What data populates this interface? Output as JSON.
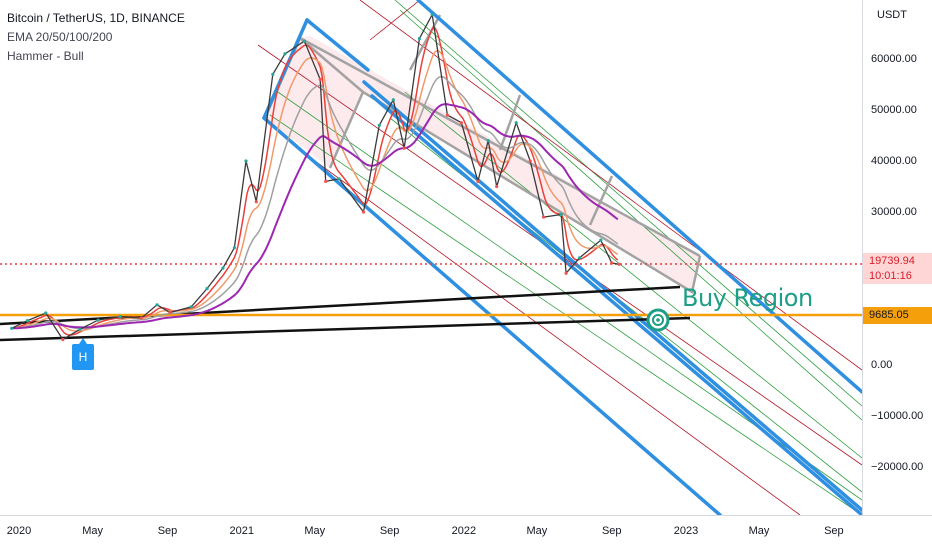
{
  "header": {
    "title": "Bitcoin / TetherUS, 1D, BINANCE",
    "indicator": "EMA 20/50/100/200",
    "pattern": "Hammer - Bull"
  },
  "price_axis": {
    "unit": "USDT",
    "current_price": "19739.94",
    "countdown": "10:01:16",
    "level_price": "9685.05"
  },
  "annotations": {
    "buy_region": "Buy Region",
    "hammer_marker": "H"
  },
  "colors": {
    "channel_blue": "#2f8fe0",
    "fib_green": "#2e9e3e",
    "fib_red": "#b3172a",
    "support_orange": "#f59f0a",
    "trend_black": "#111111",
    "ema_red": "#e8403a",
    "ema_orange": "#f09a6a",
    "ema_gray": "#a0a0a0",
    "ema_purple": "#9c27b0",
    "buy_target": "#1e9e86",
    "price_line": "#e04040"
  },
  "chart_data": {
    "type": "line",
    "symbol": "BTCUSDT",
    "exchange": "BINANCE",
    "interval": "1D",
    "ylim": [
      -30000,
      70000
    ],
    "y_ticks": [
      60000,
      50000,
      40000,
      30000,
      20000,
      10000,
      0,
      -10000,
      -20000
    ],
    "y_tick_labels": [
      "60000.00",
      "50000.00",
      "40000.00",
      "30000.00",
      "",
      "",
      "0.00",
      "−10000.00",
      "−20000.00"
    ],
    "x_tick_labels": [
      "2020",
      "May",
      "Sep",
      "2021",
      "May",
      "Sep",
      "2022",
      "May",
      "Sep",
      "2023",
      "May",
      "Sep"
    ],
    "x_tick_dates": [
      "2020-01-01",
      "2020-05-01",
      "2020-09-01",
      "2021-01-01",
      "2021-05-01",
      "2021-09-01",
      "2022-01-01",
      "2022-05-01",
      "2022-09-01",
      "2023-01-01",
      "2023-05-01",
      "2023-09-01"
    ],
    "xlim": [
      "2019-12-20",
      "2023-10-10"
    ],
    "series": [
      {
        "name": "BTCUSDT",
        "x": [
          "2019-12-20",
          "2020-01-15",
          "2020-02-14",
          "2020-03-13",
          "2020-04-10",
          "2020-05-10",
          "2020-06-15",
          "2020-07-20",
          "2020-08-15",
          "2020-09-05",
          "2020-10-10",
          "2020-11-05",
          "2020-12-01",
          "2020-12-20",
          "2021-01-08",
          "2021-01-25",
          "2021-02-21",
          "2021-03-13",
          "2021-04-14",
          "2021-05-10",
          "2021-05-19",
          "2021-06-10",
          "2021-07-20",
          "2021-08-15",
          "2021-09-07",
          "2021-09-25",
          "2021-10-20",
          "2021-11-10",
          "2021-12-05",
          "2021-12-28",
          "2022-01-24",
          "2022-02-10",
          "2022-02-24",
          "2022-03-28",
          "2022-04-20",
          "2022-05-12",
          "2022-06-10",
          "2022-06-18",
          "2022-07-10",
          "2022-08-14",
          "2022-09-01",
          "2022-09-13"
        ],
        "values": [
          7200,
          8700,
          10200,
          5000,
          7000,
          8800,
          9500,
          9200,
          11800,
          10300,
          11400,
          15000,
          19000,
          23000,
          40000,
          32000,
          57000,
          61000,
          63500,
          56000,
          36000,
          36500,
          30000,
          47000,
          52000,
          42500,
          64000,
          68700,
          49000,
          47500,
          36000,
          44000,
          35000,
          47500,
          40000,
          29000,
          29500,
          18000,
          21000,
          24500,
          20000,
          19739.94
        ]
      }
    ],
    "ema_periods": [
      20,
      50,
      100,
      200
    ],
    "horizontal_levels": [
      {
        "name": "current price",
        "value": 19739.94,
        "style": "dotted",
        "color": "#e04040"
      },
      {
        "name": "support",
        "value": 9685.05,
        "color": "#f59f0a"
      }
    ],
    "pattern_marker": {
      "label": "H",
      "date": "2020-03-13",
      "name": "Hammer - Bull"
    },
    "buy_region_target": {
      "date": "2022-11-15",
      "value": 9500
    }
  }
}
